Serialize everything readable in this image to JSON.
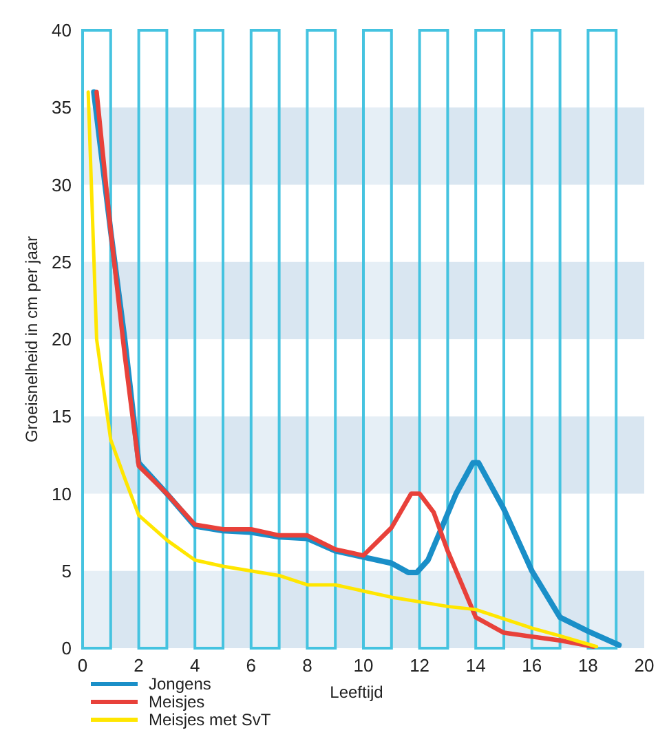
{
  "chart_data": {
    "type": "line",
    "xlabel": "Leeftijd",
    "ylabel": "Groeisnelheid in cm per jaar",
    "xlim": [
      0,
      20
    ],
    "xticks": [
      0,
      2,
      4,
      6,
      8,
      10,
      12,
      14,
      16,
      18,
      20
    ],
    "ylim": [
      0,
      40
    ],
    "yticks": [
      0,
      5,
      10,
      15,
      20,
      25,
      30,
      35,
      40
    ],
    "grid": false,
    "legend": "bottom left",
    "line_style": "solid",
    "marker": "none",
    "series": [
      {
        "name": "Jongens",
        "color": "#1a8fc8",
        "x": [
          0.4,
          1,
          1.5,
          2,
          3,
          4,
          5,
          6,
          7,
          8,
          9,
          10,
          11,
          11.6,
          11.9,
          12.3,
          13.3,
          13.9,
          14.1,
          15,
          16,
          17,
          18,
          19.1
        ],
        "values": [
          36,
          27,
          20,
          12,
          10,
          7.9,
          7.6,
          7.5,
          7.2,
          7.1,
          6.3,
          5.9,
          5.5,
          4.9,
          4.9,
          5.7,
          10,
          12,
          12,
          9,
          5,
          2,
          1.1,
          0.2
        ]
      },
      {
        "name": "Meisjes",
        "color": "#e8413a",
        "x": [
          0.5,
          1,
          1.5,
          2,
          3,
          4,
          5,
          6,
          7,
          8,
          9,
          10,
          11,
          11.7,
          12,
          12.5,
          13,
          14,
          15,
          17,
          18.2
        ],
        "values": [
          36,
          27,
          19,
          11.8,
          10,
          8,
          7.7,
          7.7,
          7.3,
          7.3,
          6.4,
          6,
          7.8,
          10,
          10,
          8.8,
          6.3,
          2,
          1,
          0.5,
          0.1
        ]
      },
      {
        "name": "Meisjes met SvT",
        "color": "#ffe600",
        "x": [
          0.2,
          0.5,
          1,
          1.5,
          2,
          3,
          4,
          5,
          6,
          7,
          8,
          9,
          10,
          11,
          12,
          13,
          14,
          15,
          16,
          17,
          18.3
        ],
        "values": [
          36,
          20,
          13.5,
          11,
          8.6,
          7,
          5.7,
          5.3,
          5,
          4.7,
          4.1,
          4.1,
          3.7,
          3.3,
          3,
          2.7,
          2.5,
          1.9,
          1.3,
          0.8,
          0.1
        ]
      }
    ],
    "bands": [
      {
        "axis": "y",
        "from": 0,
        "to": 5,
        "color": "#c4d9ea"
      },
      {
        "axis": "y",
        "from": 10,
        "to": 15,
        "color": "#c4d9ea"
      },
      {
        "axis": "y",
        "from": 20,
        "to": 25,
        "color": "#c4d9ea"
      },
      {
        "axis": "y",
        "from": 30,
        "to": 35,
        "color": "#c4d9ea"
      },
      {
        "axis": "x",
        "from": 0,
        "to": 1,
        "color": "#45c3e0"
      },
      {
        "axis": "x",
        "from": 2,
        "to": 3,
        "color": "#45c3e0"
      },
      {
        "axis": "x",
        "from": 4,
        "to": 5,
        "color": "#45c3e0"
      },
      {
        "axis": "x",
        "from": 6,
        "to": 7,
        "color": "#45c3e0"
      },
      {
        "axis": "x",
        "from": 8,
        "to": 9,
        "color": "#45c3e0"
      },
      {
        "axis": "x",
        "from": 10,
        "to": 11,
        "color": "#45c3e0"
      },
      {
        "axis": "x",
        "from": 12,
        "to": 13,
        "color": "#45c3e0"
      },
      {
        "axis": "x",
        "from": 14,
        "to": 15,
        "color": "#45c3e0"
      },
      {
        "axis": "x",
        "from": 16,
        "to": 17,
        "color": "#45c3e0"
      },
      {
        "axis": "x",
        "from": 18,
        "to": 19,
        "color": "#45c3e0"
      }
    ]
  }
}
